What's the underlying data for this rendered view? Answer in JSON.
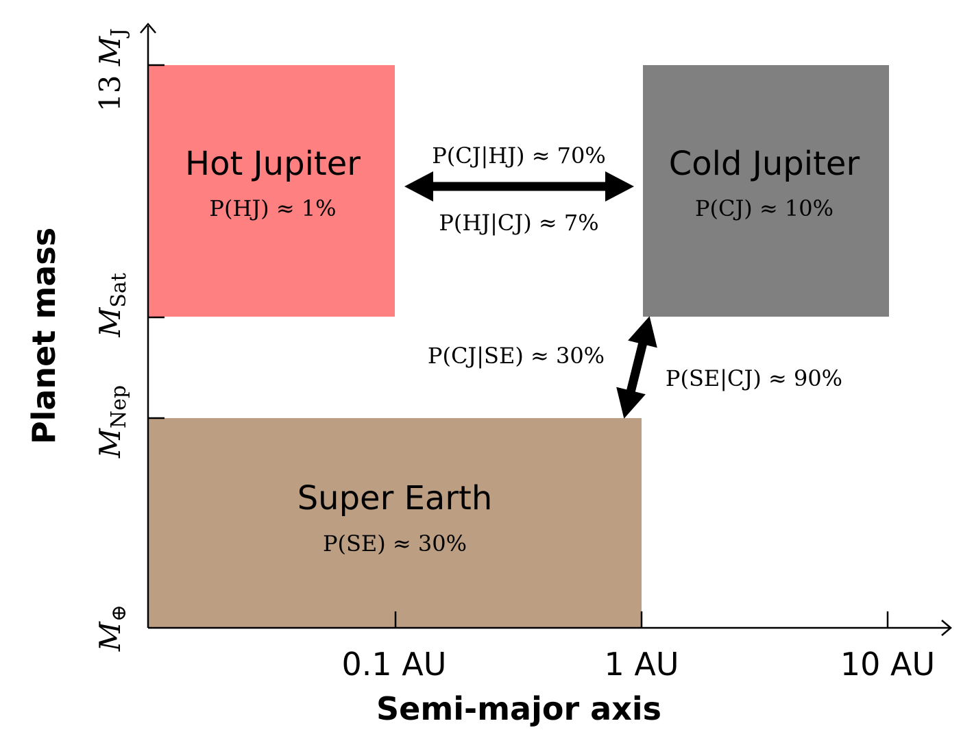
{
  "axes": {
    "x_label": "Semi-major axis",
    "y_label": "Planet mass",
    "x_ticks": [
      "0.1 AU",
      "1 AU",
      "10 AU"
    ],
    "y_ticks": [
      {
        "prefix": "",
        "symbol": "M",
        "sub": "⊕"
      },
      {
        "prefix": "",
        "symbol": "M",
        "sub": "Nep"
      },
      {
        "prefix": "",
        "symbol": "M",
        "sub": "Sat"
      },
      {
        "prefix": "13 ",
        "symbol": "M",
        "sub": "J"
      }
    ]
  },
  "regions": [
    {
      "name": "Hot Jupiter",
      "prob": "P(HJ) ≈ 1%",
      "color": "#ff8080"
    },
    {
      "name": "Cold Jupiter",
      "prob": "P(CJ) ≈ 10%",
      "color": "#808080"
    },
    {
      "name": "Super Earth",
      "prob": "P(SE) ≈ 30%",
      "color": "#bc9e82"
    }
  ],
  "relations": {
    "hj_cj": {
      "upper": "P(CJ|HJ) ≈ 70%",
      "lower": "P(HJ|CJ) ≈ 7%"
    },
    "se_cj": {
      "left": "P(CJ|SE) ≈ 30%",
      "right": "P(SE|CJ) ≈ 90%"
    }
  }
}
